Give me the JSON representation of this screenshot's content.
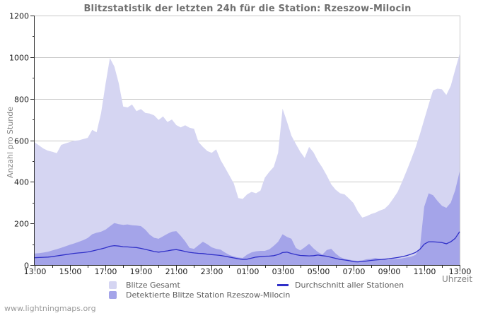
{
  "header": {
    "title": "Blitzstatistik der letzten 24h für die Station: Rzeszow-Milocin"
  },
  "footer": {
    "watermark": "www.lightningmaps.org"
  },
  "chart_data": {
    "type": "area",
    "title": "Blitzstatistik der letzten 24h für die Station: Rzeszow-Milocin",
    "xlabel": "Uhrzeit",
    "ylabel": "Anzahl pro Stunde",
    "ylim": [
      0,
      1200
    ],
    "y_major_ticks": [
      0,
      200,
      400,
      600,
      800,
      1000,
      1200
    ],
    "y_minor_step": 100,
    "x_hours_range": [
      0,
      24
    ],
    "x_tick_hours": [
      0,
      2,
      4,
      6,
      8,
      10,
      12,
      14,
      16,
      18,
      20,
      22,
      24
    ],
    "x_tick_labels": [
      "13:00",
      "15:00",
      "17:00",
      "19:00",
      "21:00",
      "23:00",
      "01:00",
      "03:00",
      "05:00",
      "07:00",
      "09:00",
      "11:00",
      "13:00"
    ],
    "x_minor_step_hours": 1,
    "grid": "horizontal-only",
    "legend_position": "bottom",
    "colors": {
      "grid": "#c8c8c8",
      "frame": "#c8c8c8",
      "axis": "#2a2a2a",
      "tick_label": "#1a1a1a",
      "title": "#707070",
      "axis_label": "#848484",
      "watermark": "#9a9a9a",
      "legend_label": "#5c5c5c",
      "background": "#ffffff"
    },
    "x_hours": [
      0,
      0.25,
      0.5,
      0.75,
      1,
      1.25,
      1.5,
      1.75,
      2,
      2.25,
      2.5,
      2.75,
      3,
      3.25,
      3.5,
      3.75,
      4,
      4.25,
      4.5,
      4.75,
      5,
      5.25,
      5.5,
      5.75,
      6,
      6.25,
      6.5,
      6.75,
      7,
      7.25,
      7.5,
      7.75,
      8,
      8.25,
      8.5,
      8.75,
      9,
      9.25,
      9.5,
      9.75,
      10,
      10.25,
      10.5,
      10.75,
      11,
      11.25,
      11.5,
      11.75,
      12,
      12.25,
      12.5,
      12.75,
      13,
      13.25,
      13.5,
      13.75,
      14,
      14.25,
      14.5,
      14.75,
      15,
      15.25,
      15.5,
      15.75,
      16,
      16.25,
      16.5,
      16.75,
      17,
      17.25,
      17.5,
      17.75,
      18,
      18.25,
      18.5,
      18.75,
      19,
      19.25,
      19.5,
      19.75,
      20,
      20.25,
      20.5,
      20.75,
      21,
      21.25,
      21.5,
      21.75,
      22,
      22.25,
      22.5,
      22.75,
      23,
      23.25,
      23.5,
      23.75,
      24
    ],
    "series": [
      {
        "name": "Blitze Gesamt",
        "type": "area",
        "color": "#d5d5f2",
        "values": [
          590,
          575,
          560,
          550,
          545,
          538,
          578,
          585,
          592,
          598,
          600,
          606,
          612,
          650,
          638,
          730,
          870,
          995,
          955,
          875,
          762,
          758,
          772,
          740,
          750,
          732,
          728,
          720,
          698,
          715,
          688,
          700,
          673,
          662,
          672,
          660,
          655,
          592,
          568,
          548,
          540,
          556,
          505,
          468,
          430,
          392,
          322,
          318,
          340,
          352,
          345,
          358,
          420,
          448,
          472,
          540,
          752,
          690,
          622,
          582,
          545,
          515,
          568,
          542,
          500,
          468,
          430,
          388,
          362,
          345,
          340,
          320,
          298,
          258,
          228,
          235,
          245,
          252,
          262,
          270,
          290,
          320,
          352,
          400,
          452,
          505,
          562,
          628,
          700,
          772,
          840,
          848,
          845,
          818,
          862,
          940,
          1015
        ]
      },
      {
        "name": "Detektierte Blitze Station Rzeszow-Milocin",
        "type": "area",
        "color": "#a4a4e9",
        "values": [
          55,
          57,
          60,
          64,
          70,
          76,
          83,
          90,
          98,
          104,
          112,
          120,
          130,
          148,
          155,
          160,
          170,
          186,
          202,
          196,
          193,
          195,
          191,
          190,
          187,
          170,
          146,
          131,
          126,
          138,
          150,
          160,
          163,
          140,
          114,
          82,
          78,
          95,
          112,
          100,
          85,
          78,
          74,
          60,
          48,
          41,
          36,
          34,
          50,
          61,
          66,
          68,
          68,
          75,
          92,
          112,
          148,
          135,
          126,
          82,
          70,
          85,
          102,
          80,
          62,
          50,
          72,
          78,
          55,
          38,
          30,
          26,
          22,
          20,
          22,
          28,
          30,
          34,
          30,
          26,
          25,
          28,
          30,
          32,
          36,
          40,
          48,
          80,
          280,
          345,
          336,
          308,
          285,
          275,
          300,
          360,
          450
        ]
      },
      {
        "name": "Durchschnitt aller Stationen",
        "type": "line",
        "color": "#3030c8",
        "values": [
          35,
          36,
          37,
          38,
          40,
          44,
          47,
          50,
          53,
          56,
          58,
          60,
          63,
          67,
          72,
          77,
          83,
          90,
          93,
          91,
          88,
          87,
          85,
          84,
          80,
          75,
          70,
          65,
          62,
          65,
          68,
          72,
          74,
          70,
          65,
          61,
          58,
          56,
          55,
          52,
          50,
          48,
          46,
          42,
          38,
          34,
          30,
          27,
          28,
          33,
          38,
          40,
          42,
          43,
          45,
          50,
          60,
          62,
          55,
          50,
          46,
          45,
          44,
          45,
          48,
          45,
          42,
          37,
          32,
          27,
          24,
          21,
          16,
          15,
          17,
          19,
          22,
          24,
          26,
          28,
          30,
          33,
          36,
          40,
          45,
          52,
          60,
          75,
          100,
          112,
          112,
          110,
          108,
          102,
          112,
          128,
          160
        ]
      }
    ]
  }
}
